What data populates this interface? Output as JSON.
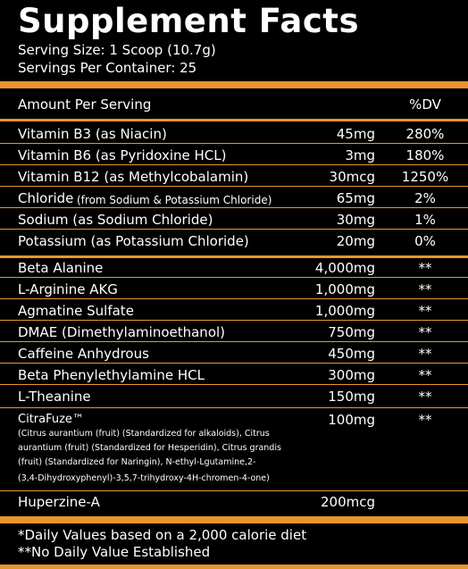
{
  "title": "Supplement Facts",
  "serving_size": "Serving Size: 1 Scoop (10.7g)",
  "servings_per_container": "Servings Per Container: 25",
  "header": {
    "amount": "Amount Per Serving",
    "dv": "%DV"
  },
  "vitamins": [
    {
      "name": "Vitamin B3 (as Niacin)",
      "amount": "45mg",
      "dv": "280%"
    },
    {
      "name": "Vitamin B6 (as Pyridoxine HCL)",
      "amount": "3mg",
      "dv": "180%"
    },
    {
      "name": "Vitamin B12 (as Methylcobalamin)",
      "amount": "30mcg",
      "dv": "1250%"
    },
    {
      "name": "Chloride",
      "name_suffix": "(from Sodium & Potassium Chloride)",
      "amount": "65mg",
      "dv": "2%"
    },
    {
      "name": "Sodium (as Sodium Chloride)",
      "amount": "30mg",
      "dv": "1%"
    },
    {
      "name": "Potassium (as Potassium Chloride)",
      "amount": "20mg",
      "dv": "0%"
    }
  ],
  "ingredients": [
    {
      "name": "Beta Alanine",
      "amount": "4,000mg",
      "dv": "**"
    },
    {
      "name": "L-Arginine AKG",
      "amount": "1,000mg",
      "dv": "**"
    },
    {
      "name": "Agmatine Sulfate",
      "amount": "1,000mg",
      "dv": "**"
    },
    {
      "name": "DMAE (Dimethylaminoethanol)",
      "amount": "750mg",
      "dv": "**"
    },
    {
      "name": "Caffeine Anhydrous",
      "amount": "450mg",
      "dv": "**"
    },
    {
      "name": "Beta Phenylethylamine HCL",
      "amount": "300mg",
      "dv": "**"
    },
    {
      "name": "L-Theanine",
      "amount": "150mg",
      "dv": "**"
    }
  ],
  "citrafuze": {
    "name": "CitraFuze™",
    "amount": "100mg",
    "dv": "**",
    "detail_lines": [
      "(Citrus aurantium (fruit) (Standardized for alkaloids), Citrus",
      "aurantium (fruit) (Standardized for Hesperidin), Citrus grandis",
      "(fruit) (Standardized for Naringin), N-ethyl-Lgutamine,2-",
      "(3,4-Dihydroxyphenyl)-3,5,7-trihydroxy-4H-chromen-4-one)"
    ]
  },
  "huperzine": {
    "name": "Huperzine-A",
    "amount": "200mcg"
  },
  "footnotes": [
    "*Daily Values based on a 2,000 calorie diet",
    "**No Daily Value Established"
  ],
  "colors": {
    "background": "#000000",
    "accent": "#e8952e",
    "text": "#ffffff"
  }
}
